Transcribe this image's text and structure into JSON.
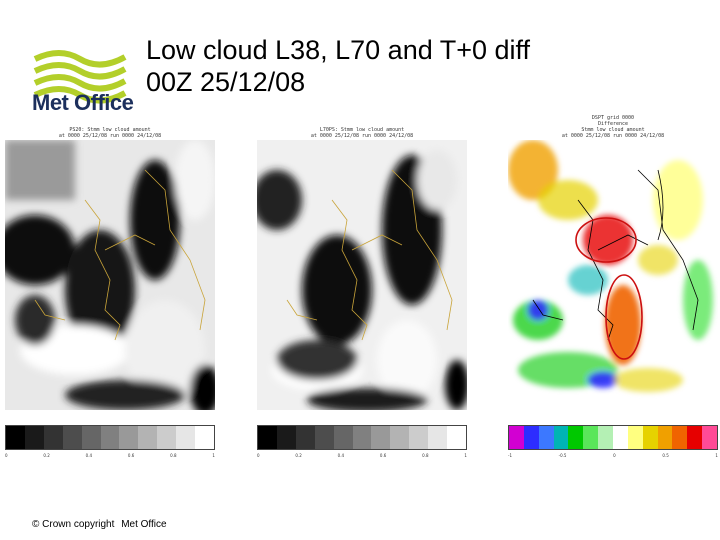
{
  "logo": {
    "text": "Met Office"
  },
  "title": {
    "line1": "Low cloud L38, L70 and T+0 diff",
    "line2": "00Z 25/12/08"
  },
  "panels": [
    {
      "caption": [
        "PS20: Stmm low cloud amount",
        "at 0000 25/12/08 run 0000 24/12/08"
      ],
      "colorbar": {
        "colors": [
          "#000000",
          "#1a1a1a",
          "#333333",
          "#4d4d4d",
          "#666666",
          "#808080",
          "#999999",
          "#b3b3b3",
          "#cccccc",
          "#e6e6e6",
          "#ffffff"
        ],
        "ticks": [
          "0",
          "0.2",
          "0.4",
          "0.6",
          "0.8",
          "1"
        ]
      }
    },
    {
      "caption": [
        "L70PS: Stmm low cloud amount",
        "at 0000 25/12/08 run 0000 24/12/08"
      ],
      "colorbar": {
        "colors": [
          "#000000",
          "#1a1a1a",
          "#333333",
          "#4d4d4d",
          "#666666",
          "#808080",
          "#999999",
          "#b3b3b3",
          "#cccccc",
          "#e6e6e6",
          "#ffffff"
        ],
        "ticks": [
          "0",
          "0.2",
          "0.4",
          "0.6",
          "0.8",
          "1"
        ]
      }
    },
    {
      "caption": [
        "DSPT grid 0000",
        "Difference",
        "Stmm low cloud amount",
        "at 0000 25/12/08 run 0000 24/12/08"
      ],
      "colorbar": {
        "colors": [
          "#d200d2",
          "#2d2dff",
          "#3c78ff",
          "#00b4b4",
          "#00c800",
          "#5ae65a",
          "#b4f0b4",
          "#ffffff",
          "#ffff80",
          "#e6d200",
          "#f0a000",
          "#f06400",
          "#e60000",
          "#ff4b96"
        ],
        "ticks": [
          "-1",
          "-0.5",
          "0",
          "0.5",
          "1"
        ]
      }
    }
  ],
  "footer": {
    "copyright": "© Crown copyright",
    "org": "Met Office"
  },
  "colors": {
    "logo_green": "#b3cf2a",
    "logo_navy": "#1c2f5c",
    "coast": "#c9a43a",
    "annotation": "#cc1010"
  }
}
